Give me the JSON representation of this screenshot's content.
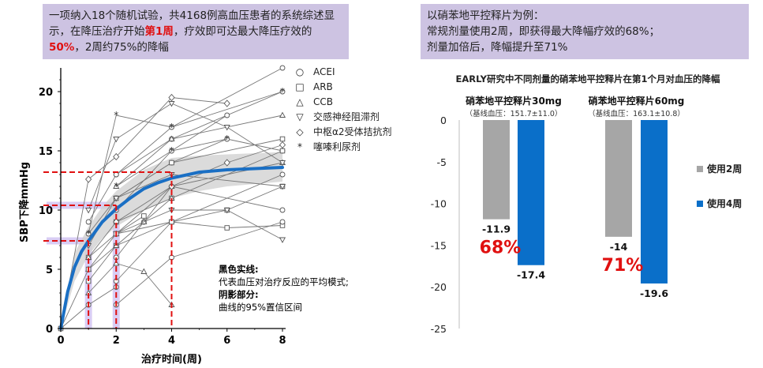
{
  "left_box": {
    "part1": "一项纳入18个随机试验，共4168例高血压患者的系统综述显示，在降压治疗开始",
    "hl1": "第1周",
    "part2": "，疗效即可达最大降压疗效的",
    "hl2": "50%",
    "part3": "，2周约75%的降幅"
  },
  "right_box": {
    "line1": "以硝苯地平控释片为例：",
    "line2": "常规剂量使用2周，即获得最大降幅疗效的68%；",
    "line3": "剂量加倍后，降幅提升至71%"
  },
  "colors": {
    "mean_curve": "#1a6fc4",
    "bar_2w": "#a6a6a6",
    "bar_4w": "#0a6fc9",
    "dash": "#e01010",
    "highlight": "#c9b8f0",
    "band": "#cfcfcf"
  },
  "chart_data": [
    {
      "type": "line",
      "xlabel": "治疗时间(周)",
      "ylabel": "SBP下降mmHg",
      "x_ticks": [
        0,
        2,
        4,
        6,
        8
      ],
      "y_ticks": [
        0,
        5,
        10,
        15,
        20
      ],
      "xlim": [
        0,
        8
      ],
      "ylim": [
        0,
        22
      ],
      "legend": [
        {
          "symbol": "○",
          "label": "ACEI"
        },
        {
          "symbol": "□",
          "label": "ARB"
        },
        {
          "symbol": "△",
          "label": "CCB"
        },
        {
          "symbol": "▽",
          "label": "交感神经阻滞剂"
        },
        {
          "symbol": "◇",
          "label": "中枢α2受体拮抗剂"
        },
        {
          "symbol": "*",
          "label": "噻嗪利尿剂"
        }
      ],
      "mean_curve": {
        "x": [
          0,
          0.25,
          0.5,
          0.75,
          1,
          1.5,
          2,
          2.5,
          3,
          3.5,
          4,
          5,
          6,
          7,
          8
        ],
        "y": [
          0,
          3.1,
          5.2,
          6.5,
          7.4,
          9.0,
          10.1,
          11.0,
          11.8,
          12.3,
          12.7,
          13.2,
          13.4,
          13.5,
          13.6
        ]
      },
      "ci_band": {
        "x": [
          0,
          0.5,
          1,
          1.5,
          2,
          3,
          4,
          5,
          6,
          7,
          8
        ],
        "lower": [
          0,
          4.0,
          6.2,
          7.6,
          8.6,
          10.0,
          11.0,
          11.6,
          12.0,
          12.2,
          12.4
        ],
        "upper": [
          0,
          6.4,
          8.6,
          10.3,
          11.6,
          13.4,
          14.4,
          14.6,
          14.7,
          14.8,
          14.9
        ]
      },
      "reference_points": [
        {
          "x": 1,
          "y": 7.4
        },
        {
          "x": 2,
          "y": 10.4
        },
        {
          "x": 4,
          "y": 13.2
        }
      ],
      "annotation": {
        "title1": "黑色实线:",
        "text1": "代表血压对治疗反应的平均模式;",
        "title2": "阴影部分:",
        "text2": "曲线的95%置信区间"
      },
      "trials": [
        {
          "m": "o",
          "x": [
            1,
            2,
            4,
            8
          ],
          "y": [
            9,
            13,
            17,
            22
          ]
        },
        {
          "m": "o",
          "x": [
            2,
            4,
            8
          ],
          "y": [
            13,
            16,
            20
          ]
        },
        {
          "m": "o",
          "x": [
            1,
            2,
            4,
            6,
            8
          ],
          "y": [
            8,
            11,
            14,
            16,
            15
          ]
        },
        {
          "m": "o",
          "x": [
            2,
            3,
            4,
            8
          ],
          "y": [
            6,
            9,
            12,
            10
          ]
        },
        {
          "m": "o",
          "x": [
            2,
            4,
            6
          ],
          "y": [
            10,
            15,
            18
          ]
        },
        {
          "m": "o",
          "x": [
            2,
            4,
            8
          ],
          "y": [
            4,
            9,
            13
          ]
        },
        {
          "m": "s",
          "x": [
            1,
            2,
            4,
            8
          ],
          "y": [
            6,
            9,
            11,
            15
          ]
        },
        {
          "m": "s",
          "x": [
            2,
            4,
            8
          ],
          "y": [
            11,
            14,
            16
          ]
        },
        {
          "m": "s",
          "x": [
            1,
            2,
            4,
            6,
            8
          ],
          "y": [
            4,
            7,
            9,
            10,
            12
          ]
        },
        {
          "m": "s",
          "x": [
            2,
            4,
            6,
            8
          ],
          "y": [
            8,
            9,
            8.5,
            8.7
          ]
        },
        {
          "m": "^",
          "x": [
            1,
            2,
            3,
            4
          ],
          "y": [
            3,
            5.5,
            4.8,
            2
          ]
        },
        {
          "m": "^",
          "x": [
            1,
            2,
            3,
            4
          ],
          "y": [
            5,
            7,
            9,
            11
          ]
        },
        {
          "m": "^",
          "x": [
            2,
            4,
            8
          ],
          "y": [
            12,
            16,
            18
          ]
        },
        {
          "m": "^",
          "x": [
            1,
            2,
            4,
            8
          ],
          "y": [
            6,
            8,
            12,
            14
          ]
        },
        {
          "m": "v",
          "x": [
            1,
            2,
            4,
            6,
            8
          ],
          "y": [
            10,
            16,
            19,
            17,
            14
          ]
        },
        {
          "m": "v",
          "x": [
            2,
            4,
            6,
            8
          ],
          "y": [
            8,
            10,
            10,
            7.5
          ]
        },
        {
          "m": "v",
          "x": [
            1,
            2,
            4,
            8
          ],
          "y": [
            7,
            11,
            13,
            12
          ]
        },
        {
          "m": "d",
          "x": [
            0,
            1,
            2,
            4,
            6
          ],
          "y": [
            0,
            12.6,
            14.5,
            19.5,
            19
          ]
        },
        {
          "m": "d",
          "x": [
            2,
            4,
            6,
            8
          ],
          "y": [
            9,
            12,
            14,
            15.5
          ]
        },
        {
          "m": "*",
          "x": [
            1,
            2,
            4,
            8
          ],
          "y": [
            8,
            18,
            17,
            20
          ]
        },
        {
          "m": "*",
          "x": [
            2,
            4,
            6
          ],
          "y": [
            12,
            15,
            16
          ]
        },
        {
          "m": "o",
          "x": [
            0,
            1,
            2
          ],
          "y": [
            0,
            2,
            3.5
          ]
        },
        {
          "m": "s",
          "x": [
            0,
            1,
            2,
            3
          ],
          "y": [
            0,
            5,
            8,
            9.5
          ]
        },
        {
          "m": "o",
          "x": [
            2,
            4,
            8
          ],
          "y": [
            2,
            6,
            9
          ]
        }
      ]
    },
    {
      "type": "bar",
      "title": "EARLY研究中不同剂量的硝苯地平控释片在第1个月对血压的降幅",
      "groups": [
        {
          "label": "硝苯地平控释片30mg",
          "sub": "（基线血压：151.7±11.0）",
          "pct": "68%",
          "values": [
            -11.9,
            -17.4
          ],
          "labels": [
            "-11.9",
            "-17.4"
          ]
        },
        {
          "label": "硝苯地平控释片60mg",
          "sub": "（基线血压：163.1±10.8）",
          "pct": "71%",
          "values": [
            -14,
            -19.6
          ],
          "labels": [
            "-14",
            "-19.6"
          ]
        }
      ],
      "series": [
        {
          "name": "使用2周"
        },
        {
          "name": "使用4周"
        }
      ],
      "y_ticks": [
        0,
        -5,
        -10,
        -15,
        -20,
        -25
      ],
      "ylim": [
        -25,
        0
      ]
    }
  ]
}
